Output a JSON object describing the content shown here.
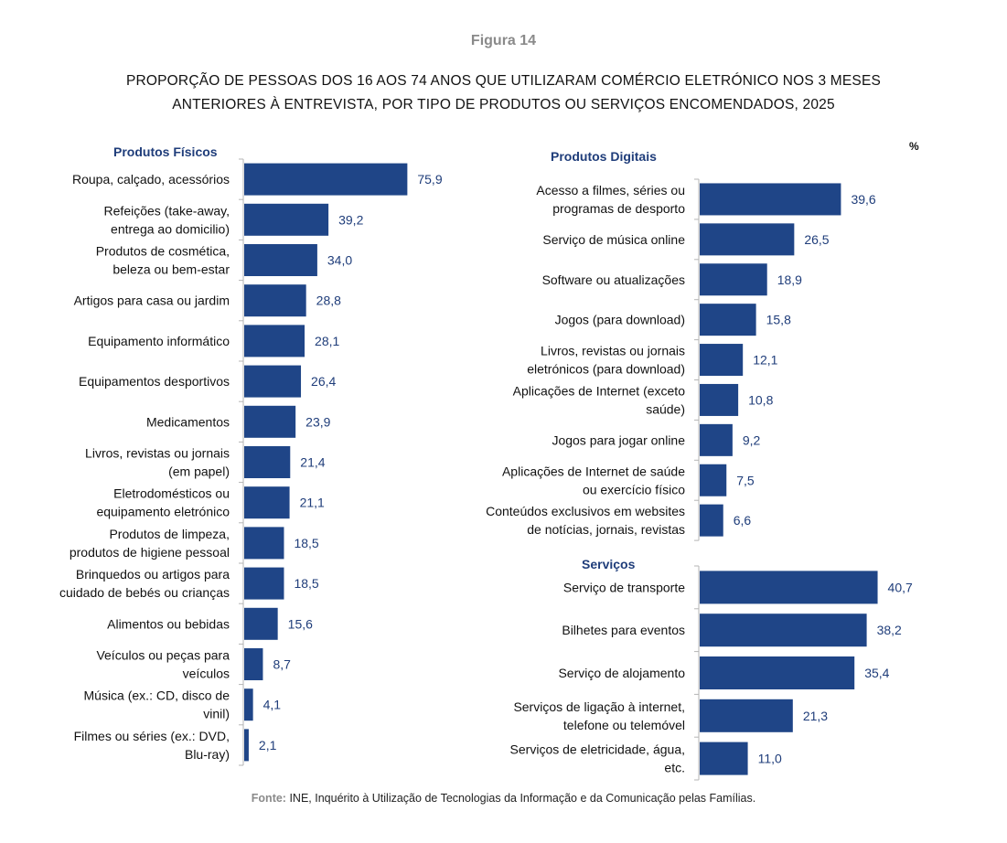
{
  "figure_number": "Figura 14",
  "title_line1": "PROPORÇÃO DE PESSOAS DOS 16 AOS 74 ANOS QUE UTILIZARAM COMÉRCIO ELETRÓNICO NOS 3 MESES",
  "title_line2": "ANTERIORES À ENTREVISTA, POR TIPO DE PRODUTOS OU SERVIÇOS ENCOMENDADOS, 2025",
  "unit": "%",
  "source_label": "Fonte:",
  "source_text": "INE, Inquérito à Utilização de Tecnologias da Informação e da Comunicação pelas Famílias.",
  "colors": {
    "bar": "#1f4587",
    "value": "#1f3d7a",
    "group_title": "#1f3d7a",
    "axis": "#b5b5b5"
  },
  "chart_data": [
    {
      "type": "bar",
      "orientation": "horizontal",
      "title": "Produtos Físicos",
      "xlim": [
        0,
        100
      ],
      "categories": [
        [
          "Roupa, calçado, acessórios"
        ],
        [
          "Refeições (take-away,",
          "entrega ao domicilio)"
        ],
        [
          "Produtos de cosmética,",
          "beleza ou bem-estar"
        ],
        [
          "Artigos para casa ou jardim"
        ],
        [
          "Equipamento informático"
        ],
        [
          "Equipamentos desportivos"
        ],
        [
          "Medicamentos"
        ],
        [
          "Livros, revistas ou jornais",
          "(em papel)"
        ],
        [
          "Eletrodomésticos ou",
          "equipamento eletrónico"
        ],
        [
          "Produtos de limpeza,",
          "produtos de higiene pessoal"
        ],
        [
          "Brinquedos ou artigos para",
          "cuidado de bebés ou crianças"
        ],
        [
          "Alimentos ou bebidas"
        ],
        [
          "Veículos ou peças para",
          "veículos"
        ],
        [
          "Música (ex.: CD, disco de",
          "vinil)"
        ],
        [
          "Filmes ou séries (ex.: DVD,",
          "Blu-ray)"
        ]
      ],
      "values": [
        75.9,
        39.2,
        34.0,
        28.8,
        28.1,
        26.4,
        23.9,
        21.4,
        21.1,
        18.5,
        18.5,
        15.6,
        8.7,
        4.1,
        2.1
      ],
      "value_labels": [
        "75,9",
        "39,2",
        "34,0",
        "28,8",
        "28,1",
        "26,4",
        "23,9",
        "21,4",
        "21,1",
        "18,5",
        "18,5",
        "15,6",
        "8,7",
        "4,1",
        "2,1"
      ]
    },
    {
      "type": "bar",
      "orientation": "horizontal",
      "title": "Produtos Digitais",
      "xlim": [
        0,
        100
      ],
      "categories": [
        [
          "Acesso a filmes, séries ou",
          "programas de desporto"
        ],
        [
          "Serviço de música online"
        ],
        [
          "Software ou atualizações"
        ],
        [
          "Jogos (para download)"
        ],
        [
          "Livros, revistas ou jornais",
          "eletrónicos (para download)"
        ],
        [
          "Aplicações de Internet (exceto",
          "saúde)"
        ],
        [
          "Jogos para jogar online"
        ],
        [
          "Aplicações de Internet de saúde",
          "ou exercício físico"
        ],
        [
          "Conteúdos exclusivos em websites",
          "de notícias, jornais, revistas"
        ]
      ],
      "values": [
        39.6,
        26.5,
        18.9,
        15.8,
        12.1,
        10.8,
        9.2,
        7.5,
        6.6
      ],
      "value_labels": [
        "39,6",
        "26,5",
        "18,9",
        "15,8",
        "12,1",
        "10,8",
        "9,2",
        "7,5",
        "6,6"
      ]
    },
    {
      "type": "bar",
      "orientation": "horizontal",
      "title": "Serviços",
      "xlim": [
        0,
        100
      ],
      "categories": [
        [
          "Serviço de transporte"
        ],
        [
          "Bilhetes para eventos"
        ],
        [
          "Serviço de alojamento"
        ],
        [
          "Serviços de ligação à internet,",
          "telefone ou telemóvel"
        ],
        [
          "Serviços de eletricidade, água,",
          "etc."
        ]
      ],
      "values": [
        40.7,
        38.2,
        35.4,
        21.3,
        11.0
      ],
      "value_labels": [
        "40,7",
        "38,2",
        "35,4",
        "21,3",
        "11,0"
      ]
    }
  ]
}
